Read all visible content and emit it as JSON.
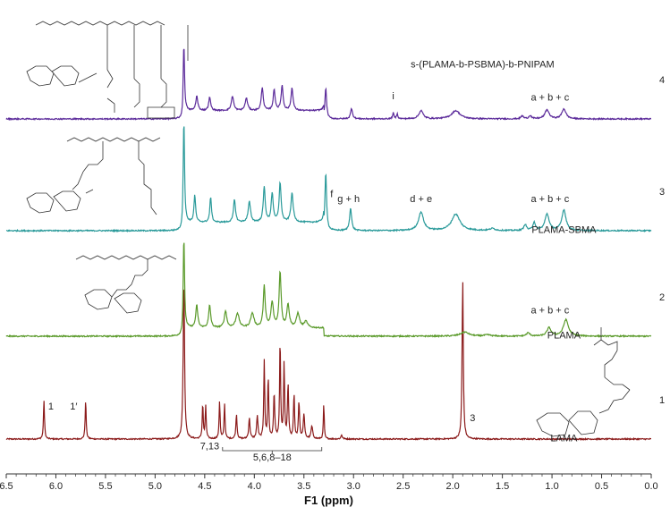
{
  "chart_data": {
    "type": "line",
    "title": "",
    "xlabel": "F1 (ppm)",
    "ylabel": "",
    "xlim": [
      6.5,
      0.0
    ],
    "x_ticks": [
      "6.5",
      "6.0",
      "5.5",
      "5.0",
      "4.5",
      "4.0",
      "3.5",
      "3.0",
      "2.5",
      "2.0",
      "1.5",
      "1.0",
      "0.5",
      "0.0"
    ],
    "x_tick_values": [
      6.5,
      6.0,
      5.5,
      5.0,
      4.5,
      4.0,
      3.5,
      3.0,
      2.5,
      2.0,
      1.5,
      1.0,
      0.5,
      0.0
    ],
    "y_ticks": [
      "1",
      "2",
      "3",
      "4"
    ],
    "grid": false,
    "series": [
      {
        "name": "LAMA",
        "trace": "1",
        "color": "#8b1a1a",
        "peaks": [
          {
            "x": 6.12,
            "h": 0.95,
            "w": 0.006
          },
          {
            "x": 5.7,
            "h": 0.95,
            "w": 0.006
          },
          {
            "x": 4.71,
            "h": 3.9,
            "w": 0.008
          },
          {
            "x": 4.52,
            "h": 0.85,
            "w": 0.006
          },
          {
            "x": 4.49,
            "h": 0.8,
            "w": 0.006
          },
          {
            "x": 4.35,
            "h": 0.9,
            "w": 0.006
          },
          {
            "x": 4.3,
            "h": 0.85,
            "w": 0.006
          },
          {
            "x": 4.18,
            "h": 0.6,
            "w": 0.007
          },
          {
            "x": 4.05,
            "h": 0.5,
            "w": 0.008
          },
          {
            "x": 3.97,
            "h": 0.55,
            "w": 0.008
          },
          {
            "x": 3.9,
            "h": 1.9,
            "w": 0.006
          },
          {
            "x": 3.86,
            "h": 1.5,
            "w": 0.006
          },
          {
            "x": 3.8,
            "h": 1.1,
            "w": 0.007
          },
          {
            "x": 3.74,
            "h": 2.4,
            "w": 0.006
          },
          {
            "x": 3.7,
            "h": 1.8,
            "w": 0.006
          },
          {
            "x": 3.66,
            "h": 1.3,
            "w": 0.007
          },
          {
            "x": 3.6,
            "h": 1.1,
            "w": 0.006
          },
          {
            "x": 3.55,
            "h": 0.9,
            "w": 0.007
          },
          {
            "x": 3.5,
            "h": 0.6,
            "w": 0.008
          },
          {
            "x": 3.42,
            "h": 0.3,
            "w": 0.01
          },
          {
            "x": 3.3,
            "h": 0.85,
            "w": 0.005
          },
          {
            "x": 3.12,
            "h": 0.1,
            "w": 0.008
          },
          {
            "x": 1.9,
            "h": 3.9,
            "w": 0.007
          }
        ],
        "labels": [
          {
            "text": "1",
            "x": 6.05,
            "v": 0.72
          },
          {
            "text": "1′",
            "x": 5.82,
            "v": 0.72
          },
          {
            "text": "3",
            "x": 1.8,
            "v": 0.43
          },
          {
            "text": "7,13",
            "x": 4.45,
            "v": -0.25
          },
          {
            "text": "5,6,8–18",
            "x": 3.82,
            "v": -0.52
          },
          {
            "text": "LAMA",
            "x": 0.88,
            "v": -0.05
          }
        ]
      },
      {
        "name": "PLAMA",
        "trace": "2",
        "color": "#5a9a2a",
        "peaks": [
          {
            "x": 4.71,
            "h": 2.2,
            "w": 0.008
          },
          {
            "x": 4.58,
            "h": 0.55,
            "w": 0.012
          },
          {
            "x": 4.45,
            "h": 0.55,
            "w": 0.012
          },
          {
            "x": 4.29,
            "h": 0.4,
            "w": 0.015
          },
          {
            "x": 4.17,
            "h": 0.35,
            "w": 0.02
          },
          {
            "x": 4.02,
            "h": 0.35,
            "w": 0.02
          },
          {
            "x": 3.9,
            "h": 1.0,
            "w": 0.012
          },
          {
            "x": 3.82,
            "h": 0.6,
            "w": 0.015
          },
          {
            "x": 3.74,
            "h": 1.35,
            "w": 0.012
          },
          {
            "x": 3.66,
            "h": 0.55,
            "w": 0.015
          },
          {
            "x": 3.56,
            "h": 0.35,
            "w": 0.018
          },
          {
            "x": 3.48,
            "h": 0.15,
            "w": 0.02
          },
          {
            "x": 1.88,
            "h": 0.1,
            "w": 0.05
          },
          {
            "x": 1.65,
            "h": 0.03,
            "w": 0.04
          },
          {
            "x": 1.24,
            "h": 0.08,
            "w": 0.02
          },
          {
            "x": 1.03,
            "h": 0.2,
            "w": 0.025
          },
          {
            "x": 0.86,
            "h": 0.4,
            "w": 0.03
          }
        ],
        "labels": [
          {
            "text": "a + b + c",
            "x": 1.02,
            "v": 0.55
          },
          {
            "text": "PLAMA",
            "x": 0.88,
            "v": -0.05
          }
        ]
      },
      {
        "name": "PLAMA-SBMA",
        "trace": "3",
        "color": "#2a9a9a",
        "peaks": [
          {
            "x": 4.71,
            "h": 2.5,
            "w": 0.008
          },
          {
            "x": 4.6,
            "h": 0.65,
            "w": 0.01
          },
          {
            "x": 4.44,
            "h": 0.6,
            "w": 0.01
          },
          {
            "x": 4.2,
            "h": 0.55,
            "w": 0.012
          },
          {
            "x": 4.05,
            "h": 0.5,
            "w": 0.014
          },
          {
            "x": 3.9,
            "h": 0.85,
            "w": 0.012
          },
          {
            "x": 3.82,
            "h": 0.7,
            "w": 0.012
          },
          {
            "x": 3.74,
            "h": 0.95,
            "w": 0.012
          },
          {
            "x": 3.62,
            "h": 0.7,
            "w": 0.014
          },
          {
            "x": 3.28,
            "h": 1.4,
            "w": 0.01
          },
          {
            "x": 3.03,
            "h": 0.55,
            "w": 0.012
          },
          {
            "x": 2.32,
            "h": 0.45,
            "w": 0.03
          },
          {
            "x": 1.97,
            "h": 0.4,
            "w": 0.05
          },
          {
            "x": 1.6,
            "h": 0.05,
            "w": 0.03
          },
          {
            "x": 1.27,
            "h": 0.15,
            "w": 0.015
          },
          {
            "x": 1.18,
            "h": 0.2,
            "w": 0.015
          },
          {
            "x": 1.05,
            "h": 0.4,
            "w": 0.025
          },
          {
            "x": 0.88,
            "h": 0.5,
            "w": 0.025
          }
        ],
        "labels": [
          {
            "text": "f",
            "x": 3.22,
            "v": 0.82
          },
          {
            "text": "g + h",
            "x": 3.05,
            "v": 0.7
          },
          {
            "text": "d + e",
            "x": 2.32,
            "v": 0.7
          },
          {
            "text": "a + b + c",
            "x": 1.02,
            "v": 0.7
          },
          {
            "text": "PLAMA-SBMA",
            "x": 0.88,
            "v": -0.05
          }
        ]
      },
      {
        "name": "s-(PLAMA-b-PSBMA)-b-PNIPAM",
        "trace": "4",
        "color": "#5b2a9a",
        "peaks": [
          {
            "x": 4.71,
            "h": 1.6,
            "w": 0.008
          },
          {
            "x": 4.58,
            "h": 0.35,
            "w": 0.012
          },
          {
            "x": 4.45,
            "h": 0.32,
            "w": 0.012
          },
          {
            "x": 4.22,
            "h": 0.35,
            "w": 0.014
          },
          {
            "x": 4.08,
            "h": 0.3,
            "w": 0.015
          },
          {
            "x": 3.92,
            "h": 0.55,
            "w": 0.012
          },
          {
            "x": 3.8,
            "h": 0.5,
            "w": 0.012
          },
          {
            "x": 3.72,
            "h": 0.6,
            "w": 0.012
          },
          {
            "x": 3.62,
            "h": 0.55,
            "w": 0.012
          },
          {
            "x": 3.28,
            "h": 0.75,
            "w": 0.01
          },
          {
            "x": 3.02,
            "h": 0.25,
            "w": 0.012
          },
          {
            "x": 2.6,
            "h": 0.14,
            "w": 0.008
          },
          {
            "x": 2.56,
            "h": 0.12,
            "w": 0.008
          },
          {
            "x": 2.32,
            "h": 0.2,
            "w": 0.025
          },
          {
            "x": 1.97,
            "h": 0.2,
            "w": 0.05
          },
          {
            "x": 1.3,
            "h": 0.07,
            "w": 0.015
          },
          {
            "x": 1.22,
            "h": 0.08,
            "w": 0.015
          },
          {
            "x": 1.05,
            "h": 0.22,
            "w": 0.025
          },
          {
            "x": 0.88,
            "h": 0.24,
            "w": 0.025
          }
        ],
        "labels": [
          {
            "text": "i",
            "x": 2.6,
            "v": 0.48
          },
          {
            "text": "a + b + c",
            "x": 1.02,
            "v": 0.45
          },
          {
            "text": "s-(PLAMA-b-PSBMA)-b-PNIPAM",
            "x": 1.7,
            "v": 1.25
          }
        ]
      }
    ]
  }
}
